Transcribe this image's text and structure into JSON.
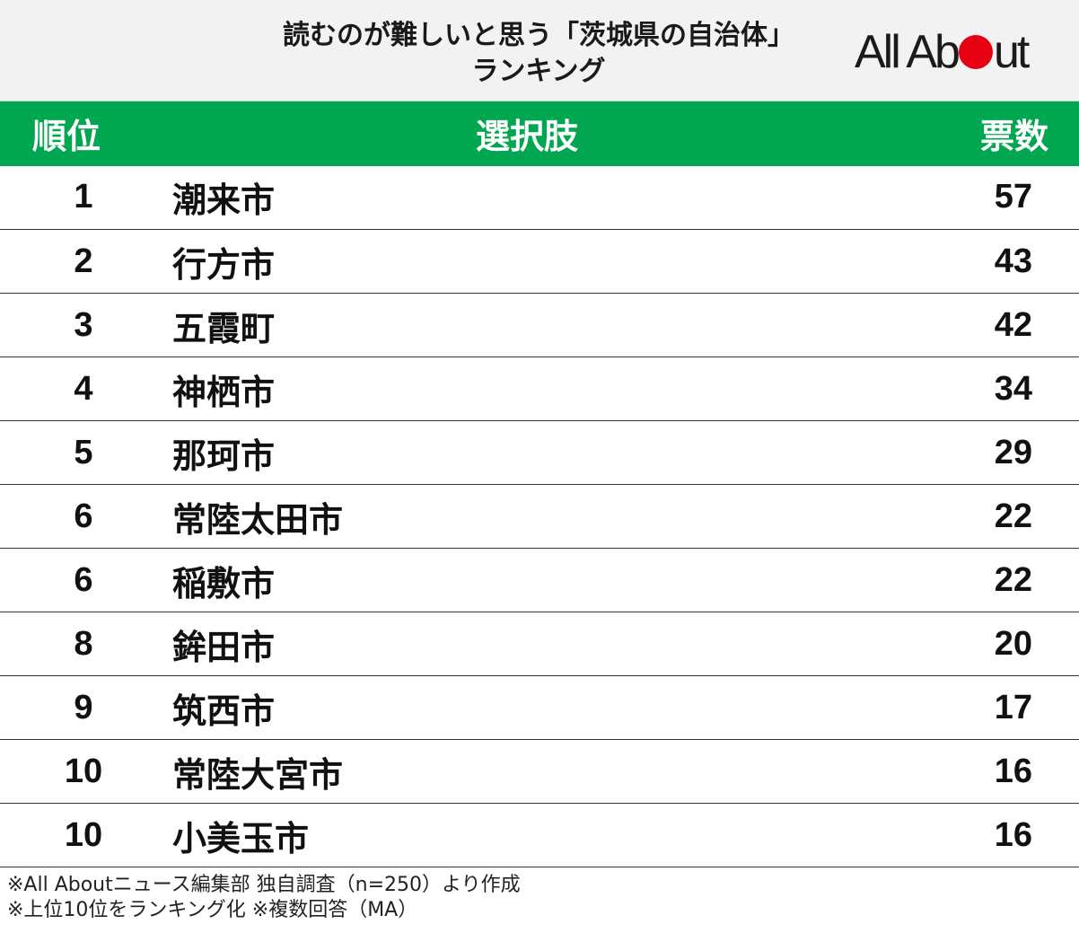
{
  "chart_data": {
    "type": "table",
    "title_line1": "読むのが難しいと思う「茨城県の自治体」",
    "title_line2": "ランキング",
    "logo_text": "All About",
    "columns": [
      "順位",
      "選択肢",
      "票数"
    ],
    "rows": [
      {
        "rank": "1",
        "name": "潮来市",
        "votes": 57
      },
      {
        "rank": "2",
        "name": "行方市",
        "votes": 43
      },
      {
        "rank": "3",
        "name": "五霞町",
        "votes": 42
      },
      {
        "rank": "4",
        "name": "神栖市",
        "votes": 34
      },
      {
        "rank": "5",
        "name": "那珂市",
        "votes": 29
      },
      {
        "rank": "6",
        "name": "常陸太田市",
        "votes": 22
      },
      {
        "rank": "6",
        "name": "稲敷市",
        "votes": 22
      },
      {
        "rank": "8",
        "name": "鉾田市",
        "votes": 20
      },
      {
        "rank": "9",
        "name": "筑西市",
        "votes": 17
      },
      {
        "rank": "10",
        "name": "常陸大宮市",
        "votes": 16
      },
      {
        "rank": "10",
        "name": "小美玉市",
        "votes": 16
      }
    ],
    "notes": [
      "※All Aboutニュース編集部 独自調査（n=250）より作成",
      "※上位10位をランキング化 ※複数回答（MA）"
    ],
    "colors": {
      "header_bg": "#00a650",
      "title_bg": "#f2f2f2",
      "logo_dot": "#e60012"
    }
  }
}
